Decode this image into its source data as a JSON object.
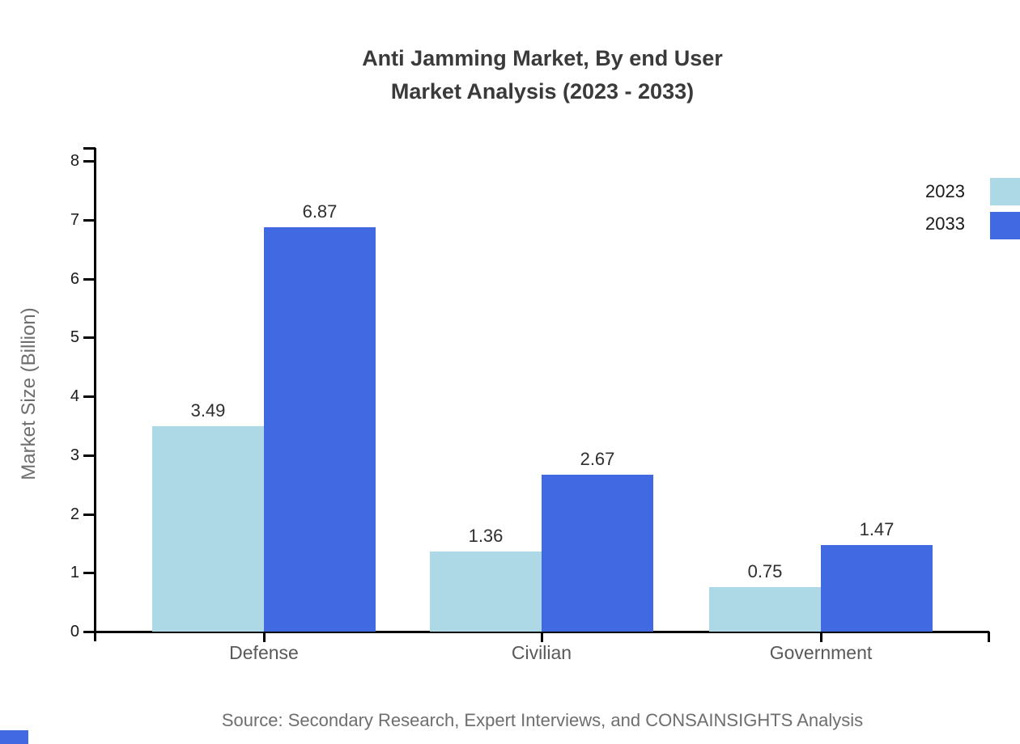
{
  "chart_data": {
    "type": "bar",
    "title_lines": [
      "Anti Jamming Market, By end User",
      "Market Analysis (2023 - 2033)"
    ],
    "categories": [
      "Defense",
      "Civilian",
      "Government"
    ],
    "series": [
      {
        "name": "2023",
        "color": "#ADD8E6",
        "values": [
          3.49,
          1.36,
          0.75
        ]
      },
      {
        "name": "2033",
        "color": "#4169E1",
        "values": [
          6.87,
          2.67,
          1.47
        ]
      }
    ],
    "xlabel": "",
    "ylabel": "Market Size (Billion)",
    "ylim": [
      0,
      8
    ],
    "yticks": [
      0,
      1,
      2,
      3,
      4,
      5,
      6,
      7,
      8
    ],
    "grid": false,
    "legend_position": "top-right",
    "value_label_decimals": 2
  },
  "source_note": "Source: Secondary Research, Expert Interviews, and CONSAINSIGHTS Analysis",
  "colors": {
    "series_2023": "#ADD8E6",
    "series_2033": "#4169E1",
    "axis": "#000000",
    "corner_mark": "#4169E1"
  }
}
